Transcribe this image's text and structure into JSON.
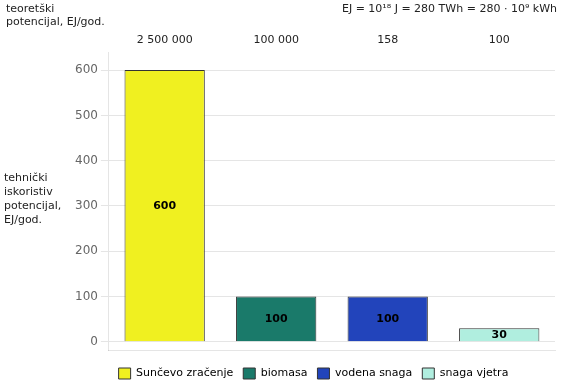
{
  "chart_data": {
    "type": "bar",
    "ylabel": "tehnički\niskoristiv\npotencijal,\nEJ/god.",
    "annotations": [
      {
        "text": "EJ = 10¹⁸ J = 280 TWh = 280 · 10⁹ kWh"
      }
    ],
    "theoretical": {
      "label": "teoretški\npotencijal, EJ/god.",
      "labels": [
        "2 500 000",
        "100 000",
        "158",
        "100"
      ]
    },
    "categories": [
      "Sunčevo zračenje",
      "biomasa",
      "vodena snaga",
      "snaga vjetra"
    ],
    "values": [
      600,
      100,
      100,
      30
    ],
    "colors": [
      "#f0f020",
      "#1a7a6a",
      "#2244bb",
      "#b0eedf"
    ],
    "ylim": [
      -18,
      640
    ],
    "yticks": [
      0,
      100,
      200,
      300,
      400,
      500,
      600
    ],
    "grid": true,
    "data_labels": true,
    "legend": "bottom",
    "tick_labels": "y"
  }
}
